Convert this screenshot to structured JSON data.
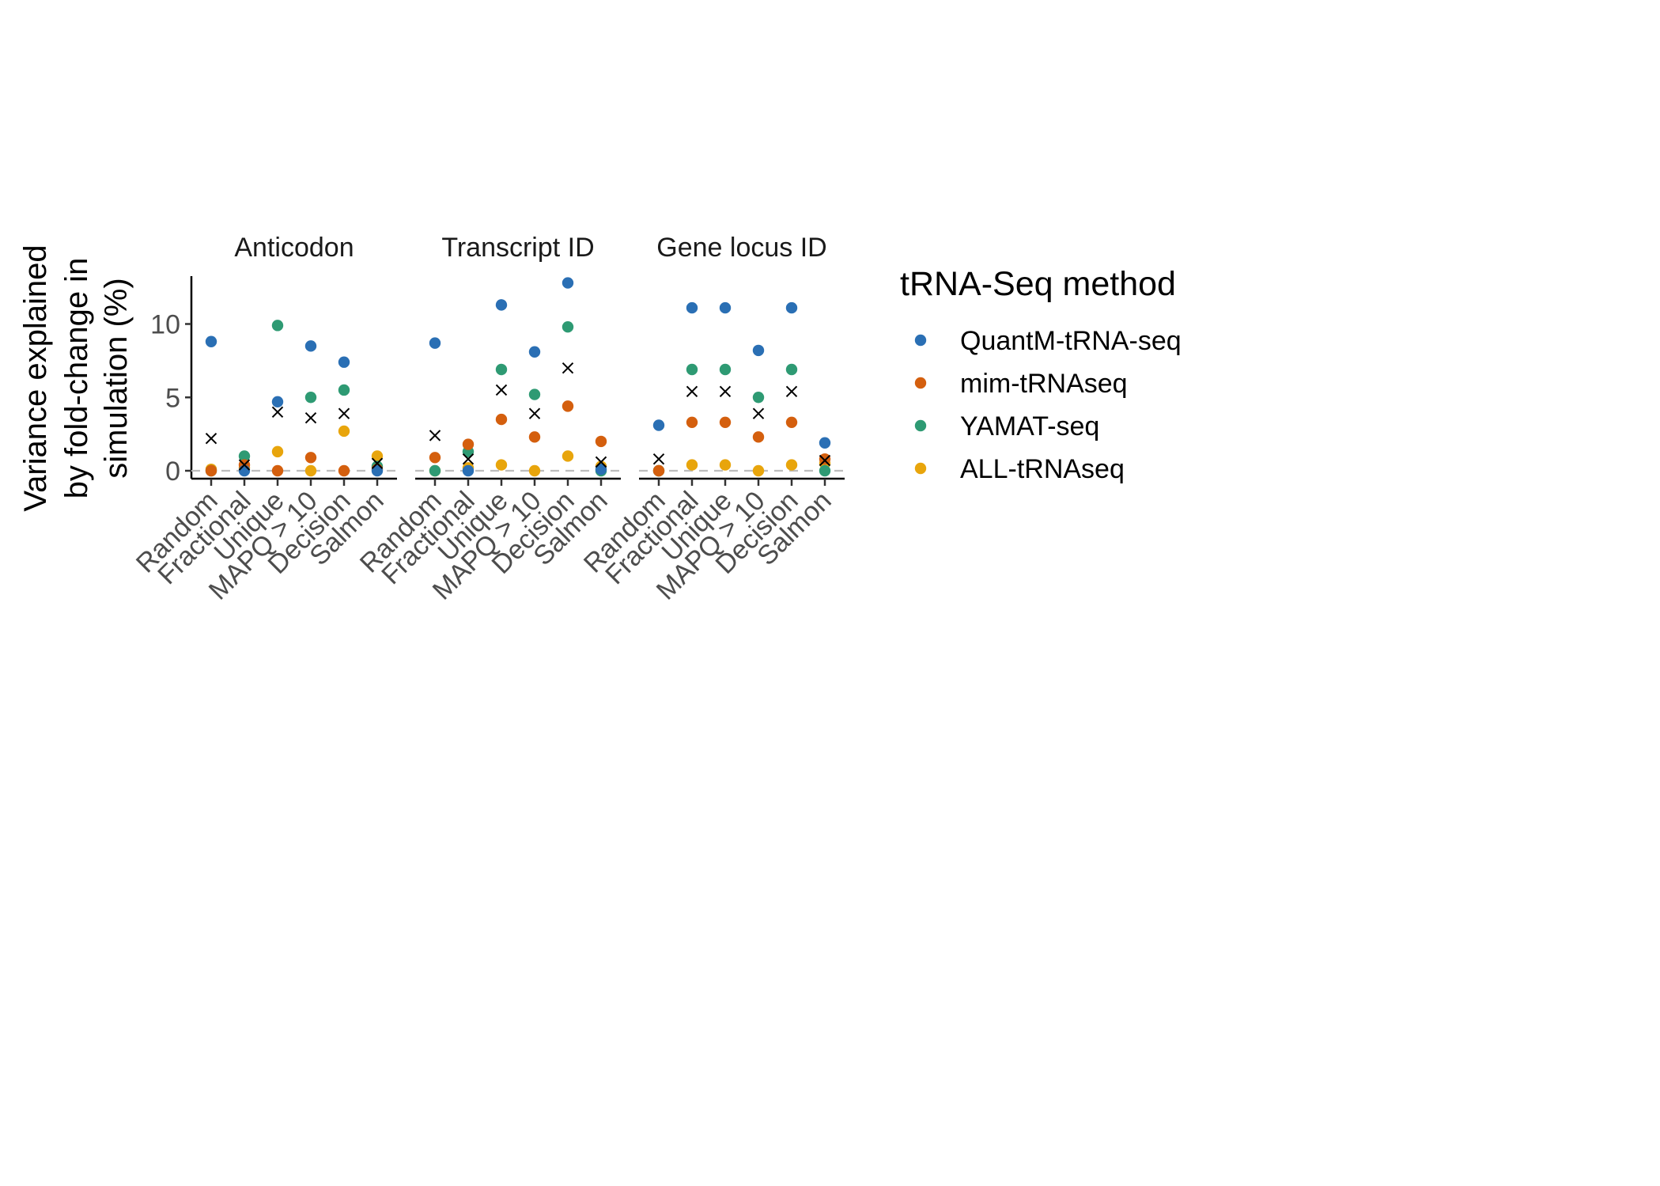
{
  "chart_data": {
    "type": "scatter",
    "ylabel_lines": [
      "Variance explained",
      "by fold-change in",
      "simulation (%)"
    ],
    "yticks": [
      0,
      5,
      10
    ],
    "ylim": [
      -0.6,
      13.5
    ],
    "categories": [
      "Random",
      "Fractional",
      "Unique",
      "MAPQ > 10",
      "Decision",
      "Salmon"
    ],
    "reference_line": 0,
    "legend": {
      "title": "tRNA-Seq method",
      "position": "right"
    },
    "series": [
      {
        "name": "QuantM-tRNA-seq",
        "color": "#2a6fb4"
      },
      {
        "name": "mim-tRNAseq",
        "color": "#d45f0e"
      },
      {
        "name": "YAMAT-seq",
        "color": "#2e9a73"
      },
      {
        "name": "ALL-tRNAseq",
        "color": "#e8a50c"
      }
    ],
    "mean_marker": "×",
    "panels": [
      {
        "title": "Anticodon",
        "values": {
          "QuantM-tRNA-seq": [
            8.8,
            0.0,
            4.7,
            8.5,
            7.4,
            0.0
          ],
          "mim-tRNAseq": [
            0.0,
            0.4,
            0.0,
            0.9,
            0.0,
            0.1
          ],
          "YAMAT-seq": [
            0.0,
            1.0,
            9.9,
            5.0,
            5.5,
            0.3
          ],
          "ALL-tRNAseq": [
            0.1,
            0.2,
            1.3,
            0.0,
            2.7,
            1.0
          ]
        },
        "means": [
          2.2,
          0.4,
          4.0,
          3.6,
          3.9,
          0.5
        ]
      },
      {
        "title": "Transcript ID",
        "values": {
          "QuantM-tRNA-seq": [
            8.7,
            0.0,
            11.3,
            8.1,
            12.8,
            0.1
          ],
          "mim-tRNAseq": [
            0.9,
            1.8,
            3.5,
            2.3,
            4.4,
            2.0
          ],
          "YAMAT-seq": [
            0.0,
            1.3,
            6.9,
            5.2,
            9.8,
            0.0
          ],
          "ALL-tRNAseq": [
            0.0,
            0.2,
            0.4,
            0.0,
            1.0,
            0.3
          ]
        },
        "means": [
          2.4,
          0.8,
          5.5,
          3.9,
          7.0,
          0.6
        ]
      },
      {
        "title": "Gene locus ID",
        "values": {
          "QuantM-tRNA-seq": [
            3.1,
            11.1,
            11.1,
            8.2,
            11.1,
            1.9
          ],
          "mim-tRNAseq": [
            0.0,
            3.3,
            3.3,
            2.3,
            3.3,
            0.8
          ],
          "YAMAT-seq": [
            0.0,
            6.9,
            6.9,
            5.0,
            6.9,
            0.0
          ],
          "ALL-tRNAseq": [
            0.0,
            0.4,
            0.4,
            0.0,
            0.4,
            0.5
          ]
        },
        "means": [
          0.8,
          5.4,
          5.4,
          3.9,
          5.4,
          0.7
        ]
      }
    ]
  }
}
